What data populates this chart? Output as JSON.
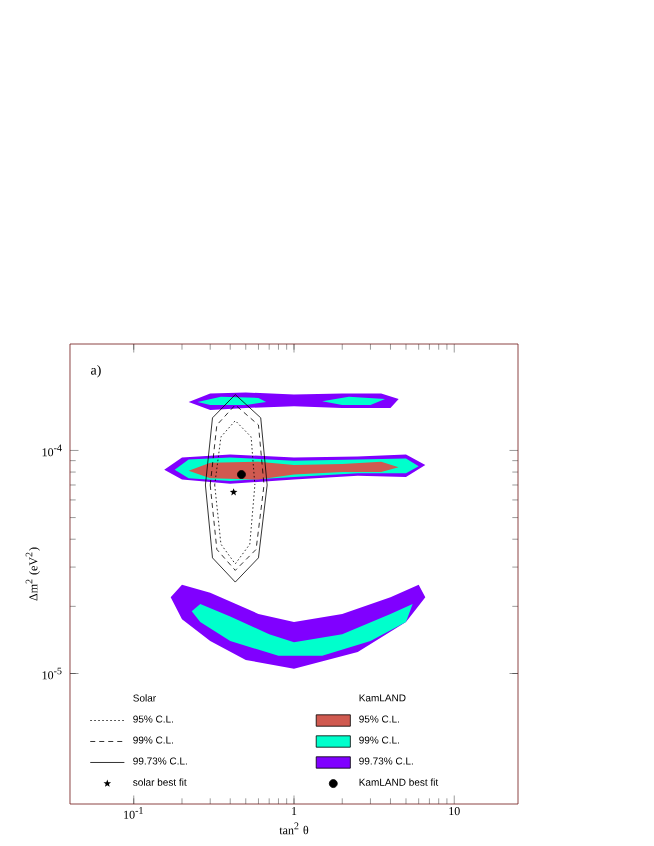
{
  "chart_data": {
    "type": "line",
    "xlabel": "tan$^{2}$ θ",
    "ylabel": "Δm$^{2}$ (eV$^{2}$)",
    "log": "xy",
    "xlim": [
      0.04,
      25
    ],
    "ylim": [
      2.6e-06,
      0.0003
    ],
    "xticks": [
      {
        "value": 0.1,
        "label": "10$^{-1}$"
      },
      1,
      10
    ],
    "yticks": [
      {
        "value": 1e-05,
        "label": "10$^{-5}$"
      },
      {
        "value": 0.0001,
        "label": "10$^{-4}$"
      }
    ],
    "legend": "bottom",
    "annotations": [
      "a)",
      "Solar",
      "KamLAND"
    ],
    "series": [
      {
        "name": "99.73% C.L.",
        "type": "area",
        "color": "#8000ff",
        "x": [
          0.22,
          0.3,
          0.5,
          1,
          2,
          3.5,
          4.5,
          4,
          2,
          1,
          0.5,
          0.3,
          null,
          0.155,
          0.2,
          0.4,
          1,
          2.5,
          5,
          6.6,
          5,
          2.5,
          1,
          0.4,
          0.2,
          null,
          0.17,
          0.2,
          0.3,
          0.6,
          1,
          2,
          4,
          6,
          6.6,
          5,
          2.5,
          1,
          0.5,
          0.3,
          0.2
        ],
        "values": [
          0.000165,
          0.00018,
          0.000182,
          0.000178,
          0.00018,
          0.00018,
          0.00017,
          0.000155,
          0.000155,
          0.000158,
          0.000155,
          0.000152,
          null,
          8.2e-05,
          9.3e-05,
          9.6e-05,
          9.3e-05,
          9.4e-05,
          9.6e-05,
          8.6e-05,
          7.6e-05,
          7.7e-05,
          7.4e-05,
          7.1e-05,
          7.4e-05,
          null,
          2.2e-05,
          2.5e-05,
          2.3e-05,
          1.85e-05,
          1.7e-05,
          1.85e-05,
          2.2e-05,
          2.5e-05,
          2.2e-05,
          1.7e-05,
          1.25e-05,
          1.05e-05,
          1.15e-05,
          1.4e-05,
          1.75e-05
        ]
      },
      {
        "name": "99% C.L.",
        "type": "area",
        "color": "#00ffcc",
        "x": [
          0.25,
          0.35,
          0.6,
          0.67,
          0.5,
          0.3,
          null,
          1.5,
          2.2,
          3.7,
          3,
          2,
          null,
          0.18,
          0.22,
          0.4,
          1,
          2.5,
          5,
          6,
          5,
          2.5,
          1,
          0.4,
          0.22,
          null,
          0.23,
          0.26,
          0.4,
          0.7,
          1,
          2,
          4,
          5.5,
          5,
          3,
          1.5,
          0.8,
          0.4,
          0.26
        ],
        "values": [
          0.000165,
          0.000174,
          0.000172,
          0.000165,
          0.00016,
          0.00016,
          null,
          0.000166,
          0.000174,
          0.00017,
          0.00016,
          0.00016,
          null,
          8.2e-05,
          9.1e-05,
          9.3e-05,
          9e-05,
          9.1e-05,
          9.2e-05,
          8.5e-05,
          7.9e-05,
          7.9e-05,
          7.6e-05,
          7.3e-05,
          7.5e-05,
          null,
          1.9e-05,
          2.05e-05,
          1.8e-05,
          1.5e-05,
          1.38e-05,
          1.5e-05,
          1.85e-05,
          2.05e-05,
          1.7e-05,
          1.4e-05,
          1.2e-05,
          1.2e-05,
          1.4e-05,
          1.7e-05
        ]
      },
      {
        "name": "95% C.L.",
        "type": "area",
        "color": "#d05a50",
        "x": [
          0.22,
          0.3,
          0.6,
          1,
          2,
          3.5,
          4.5,
          3.5,
          2,
          1,
          0.6,
          0.3
        ],
        "values": [
          8.1e-05,
          8.8e-05,
          8.9e-05,
          8.6e-05,
          8.7e-05,
          8.9e-05,
          8.4e-05,
          8e-05,
          8e-05,
          7.8e-05,
          7.4e-05,
          7.5e-05
        ]
      },
      {
        "name": "95% C.L.",
        "line_style": "dotted",
        "marker": "none",
        "color": "#000000",
        "x": [
          0.32,
          0.35,
          0.43,
          0.54,
          0.57,
          null,
          0.32,
          0.35,
          0.43,
          0.53,
          0.57
        ],
        "values": [
          7e-05,
          0.000115,
          0.000136,
          0.000115,
          7e-05,
          null,
          7e-05,
          3.8e-05,
          3.1e-05,
          3.8e-05,
          7e-05
        ]
      },
      {
        "name": "99% C.L.",
        "line_style": "dashed",
        "marker": "none",
        "color": "#000000",
        "x": [
          0.3,
          0.33,
          0.43,
          0.6,
          0.65,
          null,
          0.3,
          0.33,
          0.43,
          0.58,
          0.65
        ],
        "values": [
          7e-05,
          0.00013,
          0.00016,
          0.00013,
          7e-05,
          null,
          7e-05,
          3.6e-05,
          2.9e-05,
          3.6e-05,
          7e-05
        ]
      },
      {
        "name": "99.73% C.L.",
        "line_style": "solid",
        "marker": "none",
        "color": "#000000",
        "x": [
          0.28,
          0.31,
          0.43,
          0.62,
          0.68,
          null,
          0.28,
          0.31,
          0.43,
          0.6,
          0.68
        ],
        "values": [
          7e-05,
          0.00014,
          0.000178,
          0.00014,
          7e-05,
          null,
          7e-05,
          3.3e-05,
          2.57e-05,
          3.3e-05,
          7e-05
        ]
      },
      {
        "name": "solar best fit",
        "type": "scatter",
        "marker": "star",
        "color": "#000000",
        "x": [
          0.42
        ],
        "values": [
          6.5e-05
        ]
      },
      {
        "name": "KamLAND best fit",
        "type": "scatter",
        "marker": "circle",
        "color": "#000000",
        "x": [
          0.47
        ],
        "values": [
          7.8e-05
        ]
      }
    ]
  }
}
